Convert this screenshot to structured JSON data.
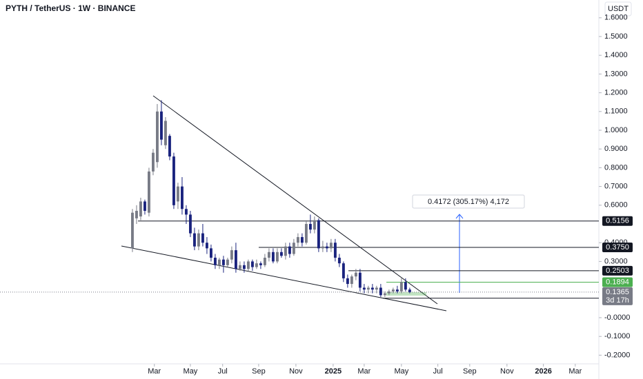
{
  "chart_data": {
    "type": "candlestick",
    "title": "PYTH / TetherUS · 1W · BINANCE",
    "currency": "USDT",
    "up_color": "#787b86",
    "down_color": "#1a237e",
    "open": [
      0.37,
      0.53,
      0.54,
      0.62,
      0.56,
      0.78,
      0.83,
      1.1,
      0.92,
      0.97,
      0.86,
      0.62,
      0.7,
      0.58,
      0.55,
      0.45,
      0.38,
      0.45,
      0.4,
      0.37,
      0.32,
      0.28,
      0.31,
      0.28,
      0.31,
      0.36,
      0.26,
      0.28,
      0.26,
      0.3,
      0.27,
      0.29,
      0.28,
      0.32,
      0.35,
      0.3,
      0.35,
      0.33,
      0.38,
      0.34,
      0.4,
      0.43,
      0.4,
      0.5,
      0.47,
      0.52,
      0.37,
      0.38,
      0.37,
      0.4,
      0.32,
      0.29,
      0.21,
      0.18,
      0.22,
      0.24,
      0.16,
      0.15,
      0.16,
      0.15,
      0.16,
      0.12,
      0.13,
      0.14,
      0.15,
      0.14,
      0.19,
      0.15
    ],
    "high": [
      0.58,
      0.6,
      0.64,
      0.63,
      0.8,
      0.9,
      1.14,
      1.16,
      1.07,
      0.98,
      0.88,
      0.72,
      0.75,
      0.6,
      0.57,
      0.48,
      0.47,
      0.5,
      0.43,
      0.39,
      0.34,
      0.32,
      0.33,
      0.32,
      0.38,
      0.4,
      0.3,
      0.3,
      0.31,
      0.31,
      0.31,
      0.3,
      0.34,
      0.37,
      0.37,
      0.37,
      0.37,
      0.4,
      0.4,
      0.42,
      0.45,
      0.45,
      0.52,
      0.55,
      0.54,
      0.53,
      0.41,
      0.4,
      0.42,
      0.42,
      0.34,
      0.3,
      0.23,
      0.23,
      0.26,
      0.26,
      0.18,
      0.17,
      0.18,
      0.17,
      0.18,
      0.14,
      0.15,
      0.16,
      0.17,
      0.21,
      0.21,
      0.16
    ],
    "low": [
      0.35,
      0.5,
      0.52,
      0.55,
      0.54,
      0.76,
      0.8,
      0.92,
      0.9,
      0.84,
      0.58,
      0.58,
      0.55,
      0.5,
      0.43,
      0.36,
      0.36,
      0.38,
      0.34,
      0.3,
      0.26,
      0.26,
      0.24,
      0.27,
      0.29,
      0.24,
      0.25,
      0.24,
      0.25,
      0.25,
      0.26,
      0.26,
      0.27,
      0.3,
      0.29,
      0.29,
      0.32,
      0.31,
      0.32,
      0.33,
      0.38,
      0.38,
      0.39,
      0.45,
      0.45,
      0.35,
      0.35,
      0.35,
      0.35,
      0.3,
      0.27,
      0.19,
      0.16,
      0.16,
      0.2,
      0.14,
      0.13,
      0.13,
      0.13,
      0.13,
      0.11,
      0.11,
      0.12,
      0.13,
      0.13,
      0.13,
      0.14,
      0.13
    ],
    "close": [
      0.56,
      0.57,
      0.62,
      0.57,
      0.78,
      0.88,
      1.1,
      0.95,
      1.05,
      0.86,
      0.6,
      0.7,
      0.58,
      0.55,
      0.45,
      0.38,
      0.45,
      0.4,
      0.37,
      0.32,
      0.28,
      0.31,
      0.28,
      0.31,
      0.36,
      0.26,
      0.28,
      0.26,
      0.3,
      0.27,
      0.29,
      0.28,
      0.32,
      0.35,
      0.3,
      0.35,
      0.33,
      0.38,
      0.34,
      0.4,
      0.43,
      0.4,
      0.5,
      0.47,
      0.52,
      0.37,
      0.38,
      0.37,
      0.4,
      0.32,
      0.29,
      0.21,
      0.18,
      0.22,
      0.24,
      0.16,
      0.15,
      0.16,
      0.15,
      0.16,
      0.12,
      0.13,
      0.14,
      0.15,
      0.14,
      0.19,
      0.15,
      0.1365
    ],
    "xlim": [
      -32,
      112.7
    ],
    "xticks": [
      {
        "value": 5.3,
        "label": "Mar"
      },
      {
        "value": 14,
        "label": "May"
      },
      {
        "value": 21.8,
        "label": "Jul"
      },
      {
        "value": 30.5,
        "label": "Sep"
      },
      {
        "value": 39.5,
        "label": "Nov"
      },
      {
        "value": 48.5,
        "label": "2025"
      },
      {
        "value": 56,
        "label": "Mar"
      },
      {
        "value": 65,
        "label": "May"
      },
      {
        "value": 73.8,
        "label": "Jul"
      },
      {
        "value": 81.5,
        "label": "Sep"
      },
      {
        "value": 90.5,
        "label": "Nov"
      },
      {
        "value": 99.3,
        "label": "2026"
      },
      {
        "value": 107,
        "label": "Mar"
      }
    ],
    "ylim": [
      -0.2463,
      1.6949
    ],
    "yticks": [
      {
        "value": 1.6,
        "label": "1.6000"
      },
      {
        "value": 1.5,
        "label": "1.5000"
      },
      {
        "value": 1.4,
        "label": "1.4000"
      },
      {
        "value": 1.3,
        "label": "1.3000"
      },
      {
        "value": 1.2,
        "label": "1.2000"
      },
      {
        "value": 1.1,
        "label": "1.1000"
      },
      {
        "value": 1.0,
        "label": "1.0000"
      },
      {
        "value": 0.9,
        "label": "0.9000"
      },
      {
        "value": 0.8,
        "label": "0.8000"
      },
      {
        "value": 0.7,
        "label": "0.7000"
      },
      {
        "value": 0.6,
        "label": "0.6000"
      },
      {
        "value": 0.4,
        "label": "0.4000"
      },
      {
        "value": 0.3,
        "label": "0.3000"
      },
      {
        "value": 0,
        "label": "-0.0000"
      },
      {
        "value": -0.1,
        "label": "-0.1000"
      },
      {
        "value": -0.2,
        "label": "-0.2000"
      }
    ],
    "levels": [
      {
        "value": 0.5156,
        "color": "#131722"
      },
      {
        "value": 0.375,
        "label": "0.3750",
        "color": "#131722"
      },
      {
        "value": 0.2503,
        "color": "#131722"
      },
      {
        "value": 0.1894,
        "color": "#4caf50"
      },
      {
        "value": 0.1038,
        "color": "#131722"
      }
    ],
    "last_price": {
      "value": 0.1365,
      "countdown": "3d 17h",
      "color": "#787b86"
    },
    "measure": "0.4172 (305.17%) 4,172"
  }
}
